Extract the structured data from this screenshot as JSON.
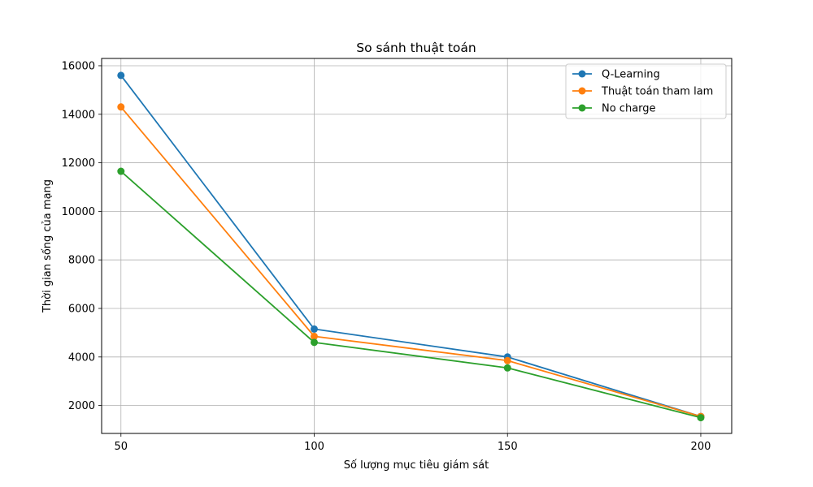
{
  "chart_data": {
    "type": "line",
    "title": "So sánh thuật toán",
    "xlabel": "Số lượng mục tiêu giám sát",
    "ylabel": "Thời gian sống của mạng",
    "x": [
      50,
      100,
      150,
      200
    ],
    "x_ticks": [
      50,
      100,
      150,
      200
    ],
    "xlim": [
      45,
      208
    ],
    "y_ticks": [
      2000,
      4000,
      6000,
      8000,
      10000,
      12000,
      14000,
      16000
    ],
    "ylim": [
      850,
      16300
    ],
    "grid": true,
    "legend_position": "top-right",
    "marker": "circle",
    "series": [
      {
        "name": "Q-Learning",
        "color": "#1f77b4",
        "values": [
          15600,
          5150,
          4000,
          1550
        ]
      },
      {
        "name": "Thuật toán tham lam",
        "color": "#ff7f0e",
        "values": [
          14300,
          4850,
          3850,
          1550
        ]
      },
      {
        "name": "No charge",
        "color": "#2ca02c",
        "values": [
          11650,
          4600,
          3550,
          1500
        ]
      }
    ]
  }
}
